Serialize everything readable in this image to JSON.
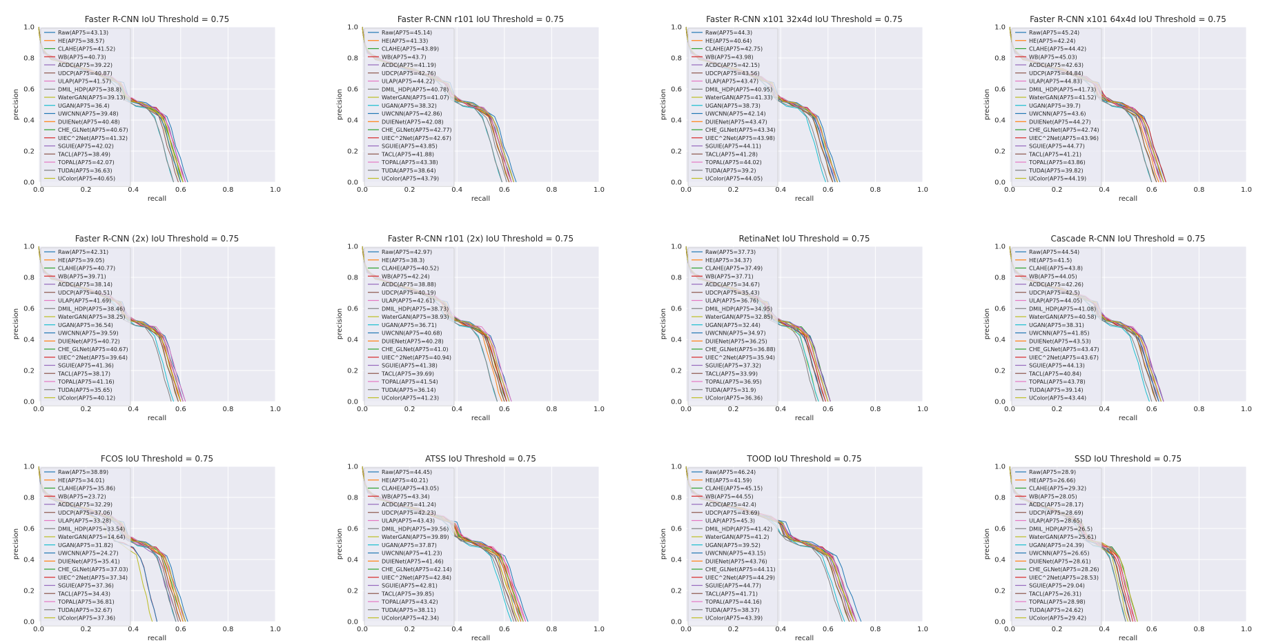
{
  "colors": [
    "#1f77b4",
    "#ff7f0e",
    "#2ca02c",
    "#d62728",
    "#9467bd",
    "#8c564b",
    "#e377c2",
    "#7f7f7f",
    "#bcbd22",
    "#17becf"
  ],
  "methods": [
    "Raw",
    "HE",
    "CLAHE",
    "WB",
    "ACDC",
    "UDCP",
    "ULAP",
    "DMIL_HDP",
    "WaterGAN",
    "UGAN",
    "UWCNN",
    "DUIENet",
    "CHE_GLNet",
    "UIEC^2Net",
    "SGUIE",
    "TACL",
    "TOPAL",
    "TUDA",
    "UColor"
  ],
  "legend_format": "{method}(AP75={value})",
  "chart_data": [
    {
      "type": "line",
      "title": "Faster R-CNN IoU Threshold = 0.75",
      "xlabel": "recall",
      "ylabel": "precision",
      "xlim": [
        0,
        1
      ],
      "ylim": [
        0,
        1
      ],
      "xticks": [
        "0.0",
        "0.2",
        "0.4",
        "0.6",
        "0.8",
        "1.0"
      ],
      "yticks": [
        "0.0",
        "0.2",
        "0.4",
        "0.6",
        "0.8",
        "1.0"
      ],
      "legend_position": "upper-left",
      "ap75": [
        "43.13",
        "38.57",
        "41.52",
        "40.73",
        "39.22",
        "40.87",
        "41.57",
        "38.8",
        "39.13",
        "36.4",
        "39.48",
        "40.48",
        "40.67",
        "41.32",
        "42.02",
        "38.49",
        "42.07",
        "36.63",
        "40.65"
      ],
      "max_recall": [
        0.63,
        0.6,
        0.62,
        0.61,
        0.6,
        0.61,
        0.62,
        0.6,
        0.6,
        0.57,
        0.6,
        0.61,
        0.61,
        0.62,
        0.62,
        0.59,
        0.62,
        0.57,
        0.61
      ]
    },
    {
      "type": "line",
      "title": "Faster R-CNN r101 IoU Threshold = 0.75",
      "xlabel": "recall",
      "ylabel": "precision",
      "xlim": [
        0,
        1
      ],
      "ylim": [
        0,
        1
      ],
      "xticks": [
        "0.0",
        "0.2",
        "0.4",
        "0.6",
        "0.8",
        "1.0"
      ],
      "yticks": [
        "0.0",
        "0.2",
        "0.4",
        "0.6",
        "0.8",
        "1.0"
      ],
      "legend_position": "upper-left",
      "ap75": [
        "45.14",
        "41.33",
        "43.89",
        "43.7",
        "41.19",
        "42.76",
        "44.22",
        "40.78",
        "41.07",
        "38.32",
        "42.86",
        "42.08",
        "42.77",
        "42.67",
        "43.85",
        "41.88",
        "43.38",
        "38.64",
        "43.79"
      ],
      "max_recall": [
        0.65,
        0.62,
        0.64,
        0.64,
        0.62,
        0.63,
        0.64,
        0.61,
        0.62,
        0.59,
        0.63,
        0.62,
        0.63,
        0.63,
        0.64,
        0.62,
        0.63,
        0.59,
        0.64
      ]
    },
    {
      "type": "line",
      "title": "Faster R-CNN x101 32x4d IoU Threshold = 0.75",
      "xlabel": "recall",
      "ylabel": "precision",
      "xlim": [
        0,
        1
      ],
      "ylim": [
        0,
        1
      ],
      "xticks": [
        "0.0",
        "0.2",
        "0.4",
        "0.6",
        "0.8",
        "1.0"
      ],
      "yticks": [
        "0.0",
        "0.2",
        "0.4",
        "0.6",
        "0.8",
        "1.0"
      ],
      "legend_position": "upper-left",
      "ap75": [
        "44.3",
        "40.64",
        "42.75",
        "43.98",
        "42.15",
        "43.56",
        "43.47",
        "40.95",
        "41.33",
        "38.73",
        "42.14",
        "43.47",
        "43.34",
        "43.98",
        "44.11",
        "41.28",
        "44.02",
        "39.2",
        "44.05"
      ],
      "max_recall": [
        0.65,
        0.62,
        0.63,
        0.64,
        0.63,
        0.64,
        0.64,
        0.62,
        0.62,
        0.59,
        0.63,
        0.64,
        0.64,
        0.64,
        0.64,
        0.62,
        0.64,
        0.6,
        0.64
      ]
    },
    {
      "type": "line",
      "title": "Faster R-CNN x101 64x4d IoU Threshold = 0.75",
      "xlabel": "recall",
      "ylabel": "precision",
      "xlim": [
        0,
        1
      ],
      "ylim": [
        0,
        1
      ],
      "xticks": [
        "0.0",
        "0.2",
        "0.4",
        "0.6",
        "0.8",
        "1.0"
      ],
      "yticks": [
        "0.0",
        "0.2",
        "0.4",
        "0.6",
        "0.8",
        "1.0"
      ],
      "legend_position": "upper-left",
      "ap75": [
        "45.24",
        "42.24",
        "44.42",
        "45.03",
        "42.63",
        "44.84",
        "44.83",
        "41.73",
        "41.52",
        "39.7",
        "43.6",
        "44.27",
        "42.74",
        "43.96",
        "44.77",
        "41.21",
        "43.86",
        "39.82",
        "44.19"
      ],
      "max_recall": [
        0.66,
        0.63,
        0.65,
        0.66,
        0.64,
        0.65,
        0.65,
        0.62,
        0.62,
        0.6,
        0.64,
        0.65,
        0.64,
        0.64,
        0.65,
        0.62,
        0.64,
        0.6,
        0.65
      ]
    },
    {
      "type": "line",
      "title": "Faster R-CNN (2x) IoU Threshold = 0.75",
      "xlabel": "recall",
      "ylabel": "precision",
      "xlim": [
        0,
        1
      ],
      "ylim": [
        0,
        1
      ],
      "xticks": [
        "0.0",
        "0.2",
        "0.4",
        "0.6",
        "0.8",
        "1.0"
      ],
      "yticks": [
        "0.0",
        "0.2",
        "0.4",
        "0.6",
        "0.8",
        "1.0"
      ],
      "legend_position": "upper-left",
      "ap75": [
        "42.31",
        "39.05",
        "40.77",
        "39.71",
        "38.14",
        "40.51",
        "41.69",
        "38.46",
        "38.25",
        "36.54",
        "39.59",
        "40.72",
        "40.67",
        "39.64",
        "41.36",
        "38.17",
        "41.16",
        "35.65",
        "40.12"
      ],
      "max_recall": [
        0.62,
        0.6,
        0.61,
        0.6,
        0.59,
        0.61,
        0.62,
        0.59,
        0.59,
        0.57,
        0.6,
        0.61,
        0.61,
        0.6,
        0.61,
        0.59,
        0.61,
        0.56,
        0.6
      ]
    },
    {
      "type": "line",
      "title": "Faster R-CNN r101 (2x) IoU Threshold = 0.75",
      "xlabel": "recall",
      "ylabel": "precision",
      "xlim": [
        0,
        1
      ],
      "ylim": [
        0,
        1
      ],
      "xticks": [
        "0.0",
        "0.2",
        "0.4",
        "0.6",
        "0.8",
        "1.0"
      ],
      "yticks": [
        "0.0",
        "0.2",
        "0.4",
        "0.6",
        "0.8",
        "1.0"
      ],
      "legend_position": "upper-left",
      "ap75": [
        "42.97",
        "38.3",
        "40.52",
        "42.24",
        "38.88",
        "40.19",
        "42.61",
        "38.73",
        "38.93",
        "36.71",
        "40.68",
        "40.28",
        "41.0",
        "40.94",
        "41.38",
        "39.69",
        "41.54",
        "36.14",
        "41.23"
      ],
      "max_recall": [
        0.63,
        0.59,
        0.61,
        0.62,
        0.6,
        0.61,
        0.63,
        0.6,
        0.6,
        0.57,
        0.61,
        0.61,
        0.61,
        0.61,
        0.62,
        0.6,
        0.62,
        0.57,
        0.62
      ]
    },
    {
      "type": "line",
      "title": "RetinaNet IoU Threshold = 0.75",
      "xlabel": "recall",
      "ylabel": "precision",
      "xlim": [
        0,
        1
      ],
      "ylim": [
        0,
        1
      ],
      "xticks": [
        "0.0",
        "0.2",
        "0.4",
        "0.6",
        "0.8",
        "1.0"
      ],
      "yticks": [
        "0.0",
        "0.2",
        "0.4",
        "0.6",
        "0.8",
        "1.0"
      ],
      "legend_position": "upper-left",
      "ap75": [
        "37.73",
        "34.37",
        "37.49",
        "37.71",
        "34.67",
        "35.43",
        "36.76",
        "34.95",
        "32.85",
        "32.44",
        "34.97",
        "36.25",
        "36.88",
        "35.94",
        "37.32",
        "33.99",
        "36.95",
        "31.9",
        "36.36"
      ],
      "max_recall": [
        0.61,
        0.58,
        0.61,
        0.61,
        0.58,
        0.59,
        0.6,
        0.58,
        0.56,
        0.56,
        0.58,
        0.6,
        0.6,
        0.59,
        0.61,
        0.58,
        0.6,
        0.55,
        0.6
      ]
    },
    {
      "type": "line",
      "title": "Cascade R-CNN IoU Threshold = 0.75",
      "xlabel": "recall",
      "ylabel": "precision",
      "xlim": [
        0,
        1
      ],
      "ylim": [
        0,
        1
      ],
      "xticks": [
        "0.0",
        "0.2",
        "0.4",
        "0.6",
        "0.8",
        "1.0"
      ],
      "yticks": [
        "0.0",
        "0.2",
        "0.4",
        "0.6",
        "0.8",
        "1.0"
      ],
      "legend_position": "upper-left",
      "ap75": [
        "44.54",
        "41.5",
        "43.8",
        "44.05",
        "42.26",
        "42.5",
        "44.05",
        "41.08",
        "40.58",
        "38.31",
        "41.85",
        "43.53",
        "43.47",
        "43.67",
        "44.13",
        "40.84",
        "43.78",
        "39.14",
        "43.44"
      ],
      "max_recall": [
        0.65,
        0.62,
        0.64,
        0.65,
        0.63,
        0.63,
        0.65,
        0.62,
        0.62,
        0.59,
        0.63,
        0.64,
        0.64,
        0.64,
        0.65,
        0.62,
        0.64,
        0.6,
        0.64
      ]
    },
    {
      "type": "line",
      "title": "FCOS IoU Threshold = 0.75",
      "xlabel": "recall",
      "ylabel": "precision",
      "xlim": [
        0,
        1
      ],
      "ylim": [
        0,
        1
      ],
      "xticks": [
        "0.0",
        "0.2",
        "0.4",
        "0.6",
        "0.8",
        "1.0"
      ],
      "yticks": [
        "0.0",
        "0.2",
        "0.4",
        "0.6",
        "0.8",
        "1.0"
      ],
      "legend_position": "upper-left",
      "ap75": [
        "38.89",
        "34.01",
        "35.86",
        "23.72",
        "32.29",
        "37.06",
        "33.28",
        "33.54",
        "14.64",
        "31.82",
        "24.27",
        "35.41",
        "37.03",
        "37.34",
        "37.36",
        "34.43",
        "36.81",
        "32.67",
        "37.36"
      ],
      "max_recall": [
        0.63,
        0.6,
        0.61,
        0.5,
        0.58,
        0.62,
        0.59,
        0.59,
        0.48,
        0.58,
        0.5,
        0.61,
        0.62,
        0.62,
        0.62,
        0.6,
        0.62,
        0.58,
        0.62
      ]
    },
    {
      "type": "line",
      "title": "ATSS IoU Threshold = 0.75",
      "xlabel": "recall",
      "ylabel": "precision",
      "xlim": [
        0,
        1
      ],
      "ylim": [
        0,
        1
      ],
      "xticks": [
        "0.0",
        "0.2",
        "0.4",
        "0.6",
        "0.8",
        "1.0"
      ],
      "yticks": [
        "0.0",
        "0.2",
        "0.4",
        "0.6",
        "0.8",
        "1.0"
      ],
      "legend_position": "upper-left",
      "ap75": [
        "44.45",
        "40.21",
        "43.05",
        "43.34",
        "41.24",
        "42.23",
        "43.43",
        "39.56",
        "39.89",
        "37.87",
        "41.23",
        "41.46",
        "42.14",
        "42.84",
        "42.81",
        "39.85",
        "43.42",
        "38.11",
        "42.34"
      ],
      "max_recall": [
        0.7,
        0.66,
        0.68,
        0.69,
        0.67,
        0.68,
        0.69,
        0.65,
        0.66,
        0.63,
        0.67,
        0.67,
        0.68,
        0.68,
        0.68,
        0.65,
        0.69,
        0.64,
        0.68
      ]
    },
    {
      "type": "line",
      "title": "TOOD IoU Threshold = 0.75",
      "xlabel": "recall",
      "ylabel": "precision",
      "xlim": [
        0,
        1
      ],
      "ylim": [
        0,
        1
      ],
      "xticks": [
        "0.0",
        "0.2",
        "0.4",
        "0.6",
        "0.8",
        "1.0"
      ],
      "yticks": [
        "0.0",
        "0.2",
        "0.4",
        "0.6",
        "0.8",
        "1.0"
      ],
      "legend_position": "upper-left",
      "ap75": [
        "46.24",
        "41.59",
        "45.15",
        "44.55",
        "42.4",
        "43.69",
        "45.3",
        "41.42",
        "41.2",
        "39.52",
        "43.15",
        "43.76",
        "44.11",
        "44.29",
        "44.77",
        "41.71",
        "44.16",
        "38.37",
        "43.39"
      ],
      "max_recall": [
        0.74,
        0.7,
        0.72,
        0.72,
        0.7,
        0.71,
        0.72,
        0.69,
        0.69,
        0.67,
        0.71,
        0.71,
        0.72,
        0.72,
        0.72,
        0.69,
        0.72,
        0.66,
        0.71
      ]
    },
    {
      "type": "line",
      "title": "SSD IoU Threshold = 0.75",
      "xlabel": "recall",
      "ylabel": "precision",
      "xlim": [
        0,
        1
      ],
      "ylim": [
        0,
        1
      ],
      "xticks": [
        "0.0",
        "0.2",
        "0.4",
        "0.6",
        "0.8",
        "1.0"
      ],
      "yticks": [
        "0.0",
        "0.2",
        "0.4",
        "0.6",
        "0.8",
        "1.0"
      ],
      "legend_position": "upper-left",
      "ap75": [
        "28.9",
        "26.66",
        "29.32",
        "28.05",
        "28.17",
        "28.69",
        "28.65",
        "26.5",
        "25.61",
        "24.39",
        "26.65",
        "28.61",
        "28.26",
        "28.53",
        "29.04",
        "26.31",
        "28.98",
        "24.62",
        "29.42"
      ],
      "max_recall": [
        0.53,
        0.51,
        0.54,
        0.52,
        0.53,
        0.53,
        0.53,
        0.51,
        0.5,
        0.49,
        0.51,
        0.53,
        0.53,
        0.53,
        0.54,
        0.51,
        0.53,
        0.49,
        0.54
      ]
    }
  ]
}
